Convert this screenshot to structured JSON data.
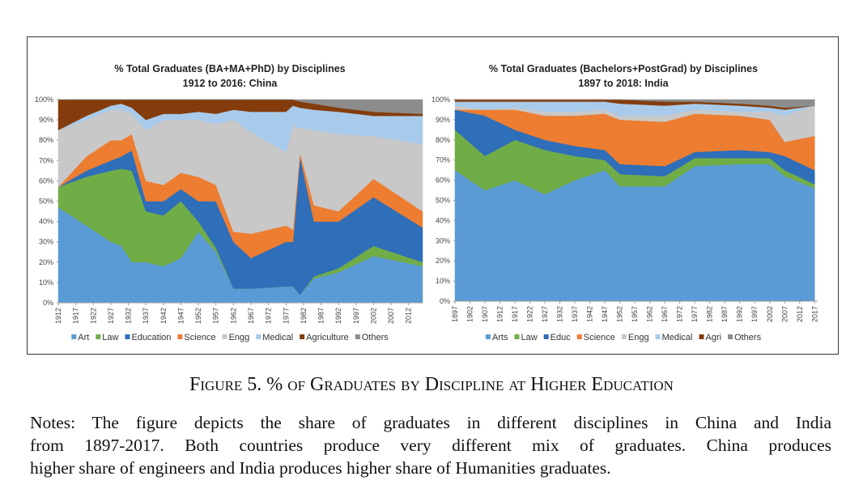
{
  "chart_data": [
    {
      "type": "area",
      "stacked": true,
      "title": "% Total Graduates (BA+MA+PhD) by Disciplines",
      "subtitle": "1912 to 2016: China",
      "x": [
        1912,
        1920,
        1927,
        1930,
        1933,
        1937,
        1942,
        1947,
        1952,
        1957,
        1962,
        1967,
        1977,
        1979,
        1981,
        1985,
        1992,
        2002,
        2016
      ],
      "xlim": [
        1912,
        2016
      ],
      "xticks": [
        1912,
        1917,
        1922,
        1927,
        1932,
        1937,
        1942,
        1947,
        1952,
        1957,
        1962,
        1967,
        1972,
        1977,
        1982,
        1987,
        1992,
        1997,
        2002,
        2007,
        2012
      ],
      "ylim": [
        0,
        100
      ],
      "yticks": [
        {
          "value": 0,
          "label": "0%"
        },
        {
          "value": 10,
          "label": "10%"
        },
        {
          "value": 20,
          "label": "20%"
        },
        {
          "value": 30,
          "label": "30%"
        },
        {
          "value": 40,
          "label": "40%"
        },
        {
          "value": 50,
          "label": "50%"
        },
        {
          "value": 60,
          "label": "60%"
        },
        {
          "value": 70,
          "label": "70%"
        },
        {
          "value": 80,
          "label": "80%"
        },
        {
          "value": 90,
          "label": "90%"
        },
        {
          "value": 100,
          "label": "100%"
        }
      ],
      "legend": "bottom",
      "series": [
        {
          "name": "Art",
          "color": "#5b9bd5",
          "values": [
            47,
            38,
            30,
            28,
            20,
            20,
            18,
            22,
            35,
            25,
            7,
            7,
            8,
            8,
            4,
            12,
            15,
            23,
            18
          ]
        },
        {
          "name": "Law",
          "color": "#70ad47",
          "values": [
            10,
            24,
            35,
            38,
            45,
            25,
            25,
            28,
            5,
            2,
            0,
            0,
            0,
            0,
            0,
            1,
            2,
            5,
            2
          ]
        },
        {
          "name": "Education",
          "color": "#2f6eb8",
          "values": [
            0,
            3,
            5,
            6,
            10,
            5,
            7,
            6,
            10,
            23,
            23,
            15,
            22,
            22,
            68,
            27,
            23,
            24,
            17
          ]
        },
        {
          "name": "Science",
          "color": "#ed7d31",
          "values": [
            0,
            7,
            10,
            8,
            8,
            10,
            8,
            8,
            12,
            8,
            5,
            12,
            8,
            6,
            2,
            8,
            5,
            9,
            8
          ]
        },
        {
          "name": "Engg",
          "color": "#c8c8c8",
          "values": [
            28,
            18,
            15,
            15,
            10,
            25,
            32,
            26,
            28,
            30,
            55,
            50,
            36,
            51,
            12,
            37,
            38,
            21,
            33
          ]
        },
        {
          "name": "Medical",
          "color": "#a9cbeb",
          "values": [
            0,
            2,
            2,
            3,
            3,
            5,
            3,
            3,
            4,
            5,
            5,
            10,
            20,
            10,
            10,
            10,
            11,
            10,
            14
          ]
        },
        {
          "name": "Agriculture",
          "color": "#843c0c",
          "values": [
            15,
            8,
            3,
            2,
            4,
            10,
            7,
            7,
            6,
            7,
            5,
            6,
            6,
            3,
            3,
            3,
            2,
            2,
            1
          ]
        },
        {
          "name": "Others",
          "color": "#8c8c8c",
          "values": [
            0,
            0,
            0,
            0,
            0,
            0,
            0,
            0,
            0,
            0,
            0,
            0,
            0,
            0,
            1,
            2,
            4,
            6,
            7
          ]
        }
      ]
    },
    {
      "type": "area",
      "stacked": true,
      "title": "% Total Graduates (Bachelors+PostGrad) by Disciplines",
      "subtitle": "1897 to 2018: India",
      "x": [
        1897,
        1907,
        1917,
        1927,
        1937,
        1947,
        1952,
        1967,
        1977,
        1992,
        2002,
        2007,
        2017
      ],
      "xlim": [
        1897,
        2018
      ],
      "xticks": [
        1897,
        1902,
        1907,
        1912,
        1917,
        1922,
        1927,
        1932,
        1937,
        1942,
        1947,
        1952,
        1957,
        1962,
        1967,
        1972,
        1977,
        1982,
        1987,
        1992,
        1997,
        2002,
        2007,
        2012,
        2017
      ],
      "ylim": [
        0,
        100
      ],
      "yticks": [
        {
          "value": 0,
          "label": "0%"
        },
        {
          "value": 10,
          "label": "10%"
        },
        {
          "value": 20,
          "label": "20%"
        },
        {
          "value": 30,
          "label": "30%"
        },
        {
          "value": 40,
          "label": "40%"
        },
        {
          "value": 50,
          "label": "50%"
        },
        {
          "value": 60,
          "label": "60%"
        },
        {
          "value": 70,
          "label": "70%"
        },
        {
          "value": 80,
          "label": "80%"
        },
        {
          "value": 90,
          "label": "90%"
        },
        {
          "value": 100,
          "label": "100%"
        }
      ],
      "legend": "bottom",
      "series": [
        {
          "name": "Arts",
          "color": "#5b9bd5",
          "values": [
            65,
            55,
            60,
            53,
            60,
            65,
            57,
            57,
            67,
            68,
            68,
            62,
            56
          ]
        },
        {
          "name": "Law",
          "color": "#70ad47",
          "values": [
            20,
            17,
            20,
            22,
            12,
            5,
            6,
            5,
            4,
            3,
            3,
            3,
            2
          ]
        },
        {
          "name": "Educ",
          "color": "#2f6eb8",
          "values": [
            10,
            20,
            5,
            5,
            5,
            5,
            5,
            5,
            3,
            4,
            3,
            7,
            7
          ]
        },
        {
          "name": "Science",
          "color": "#ed7d31",
          "values": [
            0,
            3,
            10,
            12,
            15,
            18,
            22,
            22,
            19,
            17,
            16,
            7,
            17
          ]
        },
        {
          "name": "Engg",
          "color": "#c8c8c8",
          "values": [
            2,
            0,
            1,
            2,
            2,
            2,
            2,
            3,
            2,
            2,
            4,
            13,
            15
          ]
        },
        {
          "name": "Medical",
          "color": "#a9cbeb",
          "values": [
            2,
            4,
            3,
            5,
            5,
            4,
            6,
            5,
            3,
            3,
            2,
            3,
            0
          ]
        },
        {
          "name": "Agri",
          "color": "#843c0c",
          "values": [
            1,
            1,
            1,
            1,
            1,
            1,
            2,
            2,
            1,
            1,
            1,
            1,
            0
          ]
        },
        {
          "name": "Others",
          "color": "#8c8c8c",
          "values": [
            0,
            0,
            0,
            0,
            0,
            0,
            0,
            1,
            1,
            2,
            3,
            4,
            3
          ]
        }
      ]
    }
  ],
  "caption": "Figure 5.  % of Graduates by Discipline at Higher Education",
  "notes": [
    "Notes: The figure depicts the share of graduates in different disciplines in China and India",
    "from 1897-2017.  Both countries produce very different mix of graduates.  China produces",
    "higher share of engineers and India produces higher share of Humanities graduates."
  ]
}
